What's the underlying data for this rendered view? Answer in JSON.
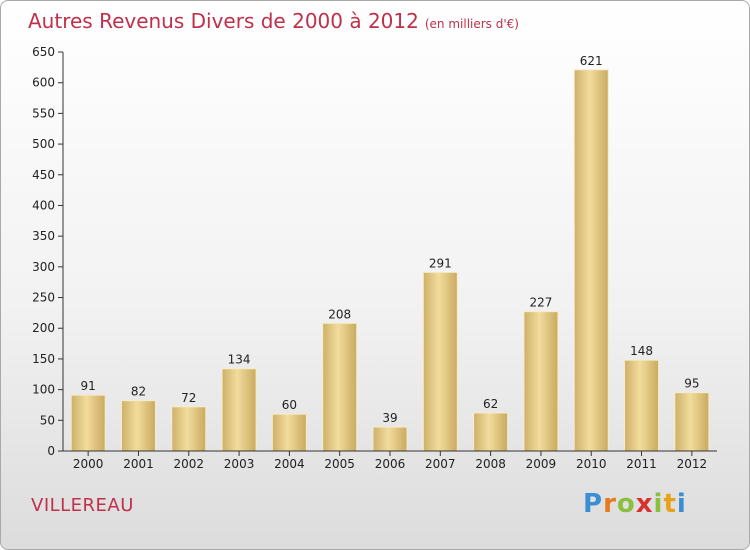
{
  "header": {
    "title": "Autres Revenus Divers de 2000 à 2012",
    "unit_note": "(en milliers d'€)"
  },
  "footer": {
    "location": "VILLEREAU",
    "logo_letters": [
      "P",
      "r",
      "o",
      "x",
      "i",
      "t",
      "i"
    ],
    "logo_colors": [
      "#3a8fd4",
      "#e77a1e",
      "#8cbf3f",
      "#d6332f",
      "#8cbf3f",
      "#e8a21a",
      "#3a8fd4"
    ]
  },
  "chart_data": {
    "type": "bar",
    "title": "Autres Revenus Divers de 2000 à 2012",
    "xlabel": "",
    "ylabel": "",
    "categories": [
      "2000",
      "2001",
      "2002",
      "2003",
      "2004",
      "2005",
      "2006",
      "2007",
      "2008",
      "2009",
      "2010",
      "2011",
      "2012"
    ],
    "values": [
      91,
      82,
      72,
      134,
      60,
      208,
      39,
      291,
      62,
      227,
      621,
      148,
      95
    ],
    "ylim": [
      0,
      650
    ],
    "yticks": [
      0,
      50,
      100,
      150,
      200,
      250,
      300,
      350,
      400,
      450,
      500,
      550,
      600,
      650
    ],
    "grid": false,
    "legend": "none",
    "bar_color": "#e0c57e",
    "data_labels": true
  }
}
